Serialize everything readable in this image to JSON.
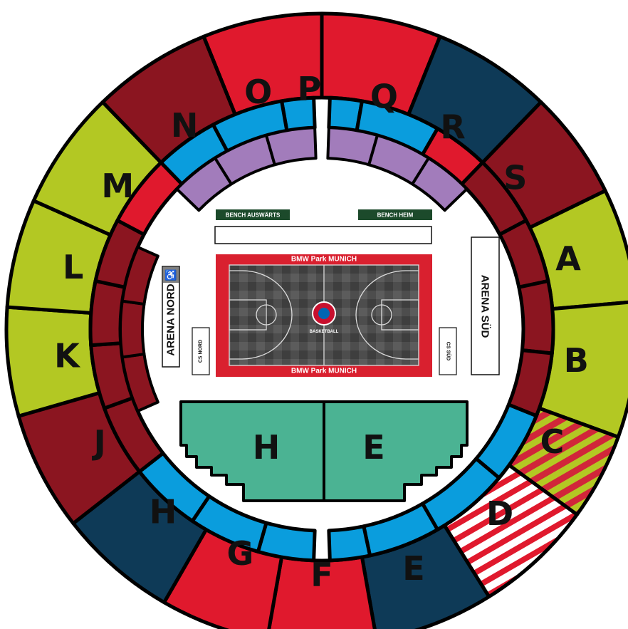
{
  "colors": {
    "navy": "#0e3a57",
    "red": "#e0192d",
    "darkred": "#8b1520",
    "lime": "#b3c823",
    "blue": "#0a9ddd",
    "lavender": "#a27cbb",
    "green": "#4bb393",
    "court_border": "#d9202f",
    "bench": "#1c4a2b"
  },
  "outer_ring": [
    {
      "id": "outer-p",
      "color": "red"
    },
    {
      "id": "outer-q",
      "color": "red"
    },
    {
      "id": "outer-r",
      "color": "navy"
    },
    {
      "id": "outer-s",
      "color": "darkred"
    },
    {
      "id": "outer-a",
      "color": "lime"
    },
    {
      "id": "outer-b",
      "color": "lime"
    },
    {
      "id": "outer-c",
      "color": "striped-lime"
    },
    {
      "id": "outer-d",
      "color": "striped-red"
    },
    {
      "id": "outer-e",
      "color": "navy"
    },
    {
      "id": "outer-f",
      "color": "red"
    },
    {
      "id": "outer-g",
      "color": "red"
    },
    {
      "id": "outer-h",
      "color": "navy"
    },
    {
      "id": "outer-j",
      "color": "darkred"
    },
    {
      "id": "outer-k",
      "color": "lime"
    },
    {
      "id": "outer-l",
      "color": "lime"
    },
    {
      "id": "outer-m",
      "color": "lime"
    },
    {
      "id": "outer-n",
      "color": "darkred"
    },
    {
      "id": "outer-o",
      "color": "navy"
    }
  ],
  "block_labels": [
    "P",
    "Q",
    "R",
    "S",
    "A",
    "B",
    "C",
    "D",
    "E",
    "F",
    "G",
    "H",
    "J",
    "K",
    "L",
    "M",
    "N",
    "O"
  ],
  "floor_labels": {
    "left": "H",
    "right": "E"
  },
  "benches": {
    "away": "BENCH AUSWÄRTS",
    "home": "BENCH HEIM"
  },
  "court": {
    "sponsor_top": "BMW Park MUNICH",
    "sponsor_bottom": "BMW Park MUNICH",
    "logo_text": "BASKETBALL"
  },
  "areas": {
    "nord": "ARENA NORD",
    "sued": "ARENA SÜD",
    "cs_nord": "CS NORD",
    "cs_sued": "CS SÜD"
  },
  "icons": {
    "accessibility": "wheelchair-icon"
  }
}
